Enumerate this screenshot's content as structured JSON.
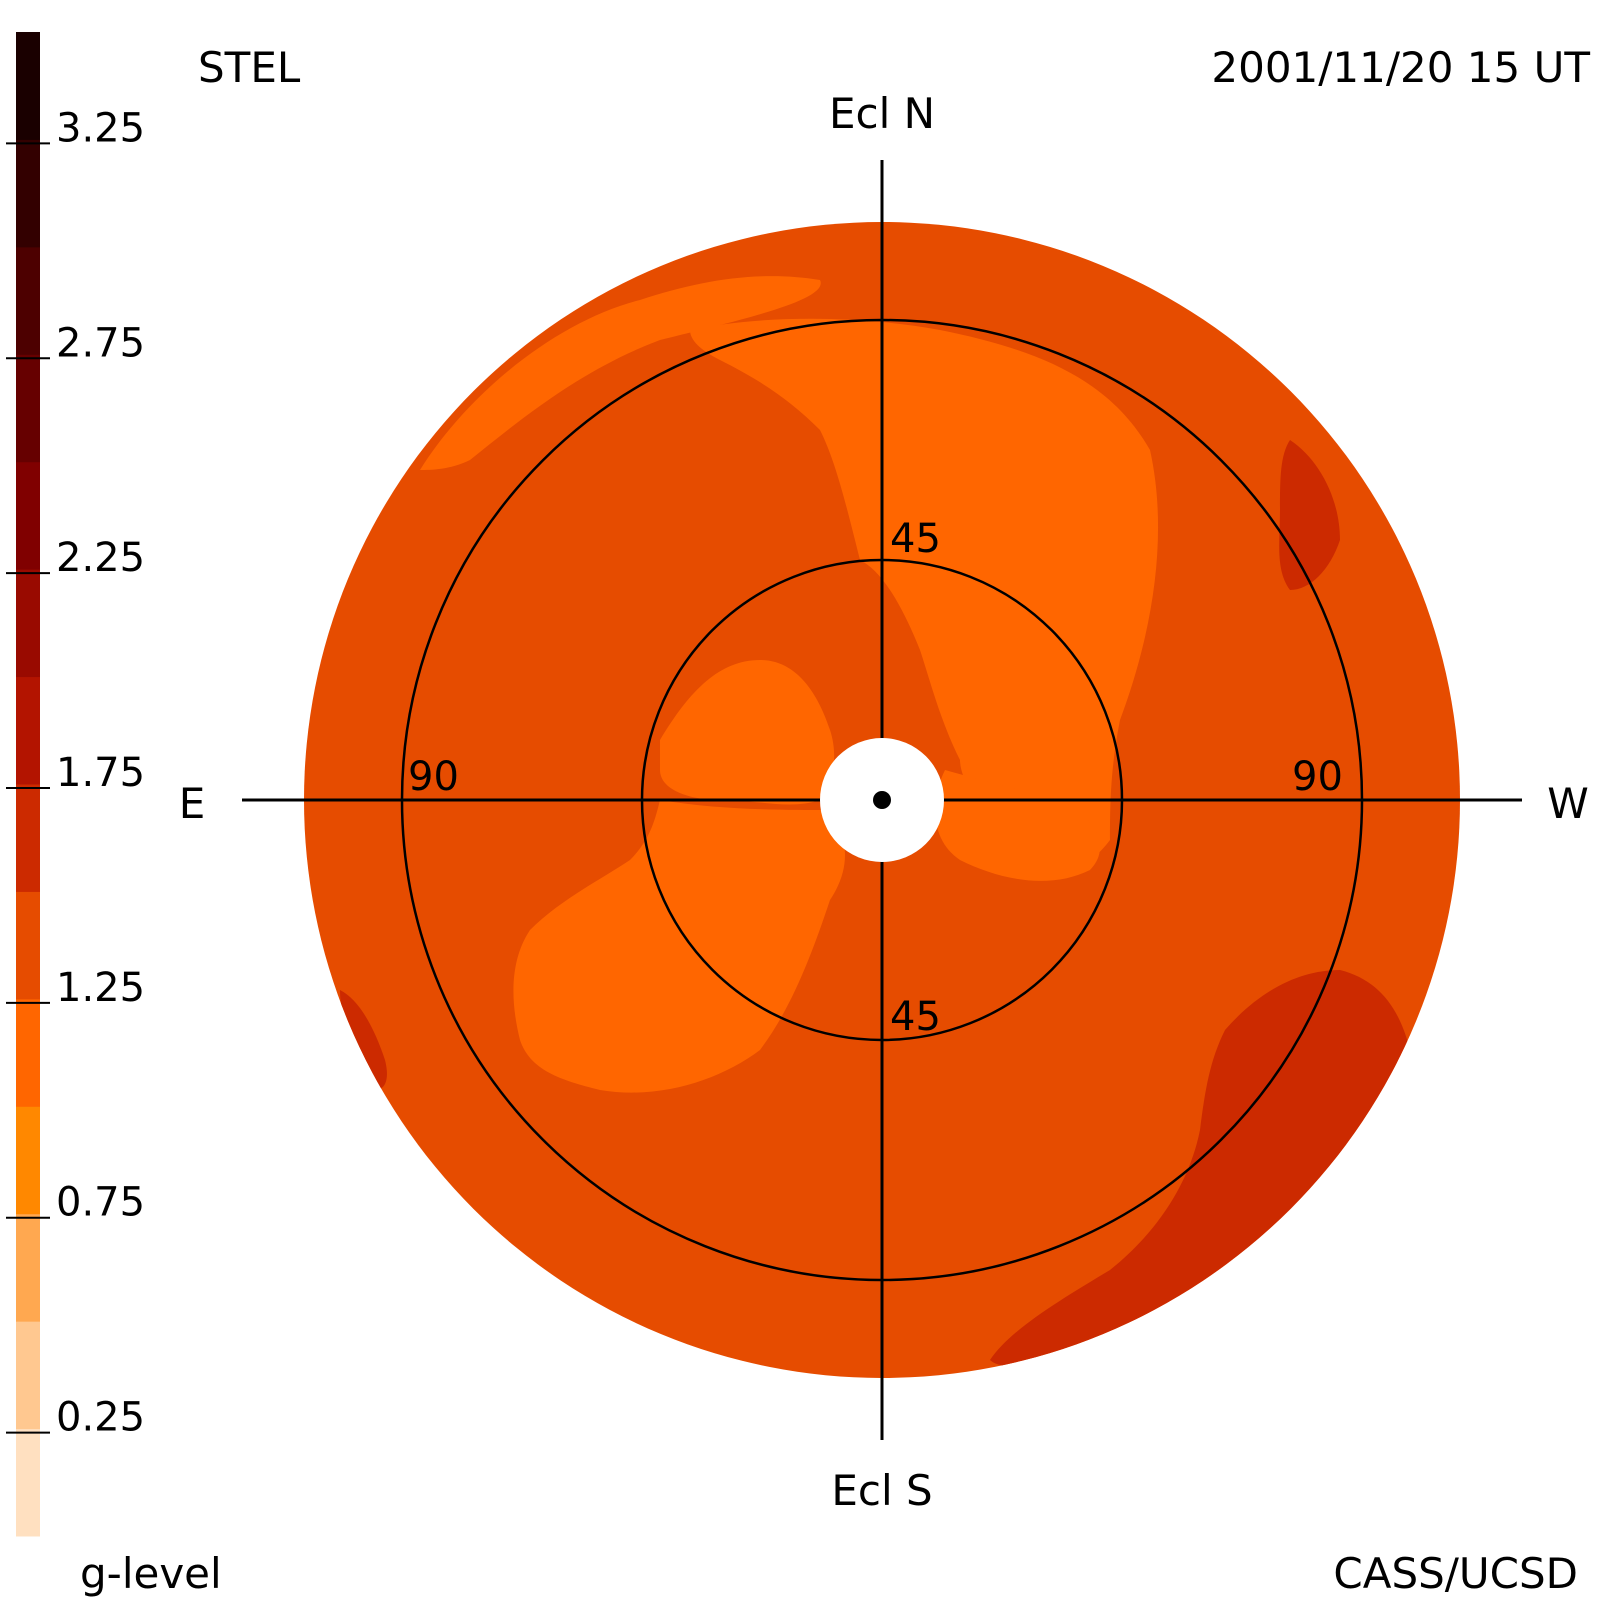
{
  "header": {
    "instrument": "STEL",
    "timestamp": "2001/11/20 15 UT"
  },
  "footer": {
    "credit": "CASS/UCSD"
  },
  "colorbar": {
    "label": "g-level",
    "min": 0,
    "max": 3.5,
    "ticks": [
      "3.25",
      "2.75",
      "2.25",
      "1.75",
      "1.25",
      "0.75",
      "0.25"
    ],
    "tick_values": [
      3.25,
      2.75,
      2.25,
      1.75,
      1.25,
      0.75,
      0.25
    ],
    "levels": [
      {
        "from": 0.0,
        "to": 0.25,
        "color": "#ffe0c0"
      },
      {
        "from": 0.25,
        "to": 0.5,
        "color": "#ffc890"
      },
      {
        "from": 0.5,
        "to": 0.75,
        "color": "#ffa850"
      },
      {
        "from": 0.75,
        "to": 1.0,
        "color": "#ff8800"
      },
      {
        "from": 1.0,
        "to": 1.25,
        "color": "#ff6600"
      },
      {
        "from": 1.25,
        "to": 1.5,
        "color": "#e64c00"
      },
      {
        "from": 1.5,
        "to": 1.75,
        "color": "#cc2a00"
      },
      {
        "from": 1.75,
        "to": 2.0,
        "color": "#b31400"
      },
      {
        "from": 2.0,
        "to": 2.25,
        "color": "#990a00"
      },
      {
        "from": 2.25,
        "to": 2.5,
        "color": "#800000"
      },
      {
        "from": 2.5,
        "to": 2.75,
        "color": "#660000"
      },
      {
        "from": 2.75,
        "to": 3.0,
        "color": "#4d0000"
      },
      {
        "from": 3.0,
        "to": 3.25,
        "color": "#330000"
      },
      {
        "from": 3.25,
        "to": 3.5,
        "color": "#1a0000"
      }
    ]
  },
  "chart_data": {
    "type": "heatmap",
    "projection": "polar fisheye sky map (elongation from Sun)",
    "directions": {
      "north": "Ecl N",
      "south": "Ecl S",
      "east": "E",
      "west": "W"
    },
    "ring_labels": {
      "inner_top": "45",
      "inner_bottom": "45",
      "outer_left": "90",
      "outer_right": "90"
    },
    "elongation_rings_deg": [
      45,
      90
    ],
    "regions_g_level": [
      {
        "region": "background sky",
        "g_level_range": [
          1.25,
          1.5
        ]
      },
      {
        "region": "spiral lobes (upper center, right of center, lower-left, upper-left rim)",
        "g_level_range": [
          1.0,
          1.25
        ]
      },
      {
        "region": "upper-right rim patch",
        "g_level_range": [
          1.5,
          1.75
        ]
      },
      {
        "region": "lower-right rim band",
        "g_level_range": [
          1.5,
          1.75
        ]
      },
      {
        "region": "lower-left rim patch",
        "g_level_range": [
          1.5,
          1.75
        ]
      }
    ],
    "colors": {
      "level_1_00": "#ff6600",
      "level_1_25": "#e64c00",
      "level_1_50": "#cc2a00",
      "occulter": "#ffffff",
      "lines": "#000000"
    }
  }
}
